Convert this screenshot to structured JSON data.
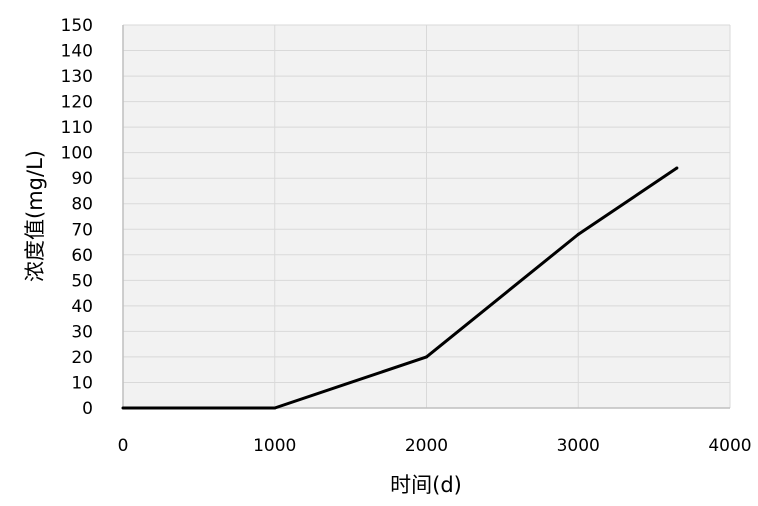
{
  "chart_data": {
    "type": "line",
    "title": "",
    "xlabel": "时间(d)",
    "ylabel": "浓度值(mg/L)",
    "xlim": [
      0,
      4000
    ],
    "ylim": [
      0,
      150
    ],
    "xticks": [
      0,
      1000,
      2000,
      3000,
      4000
    ],
    "yticks": [
      0,
      10,
      20,
      30,
      40,
      50,
      60,
      70,
      80,
      90,
      100,
      110,
      120,
      130,
      140,
      150
    ],
    "grid": true,
    "legend": "none",
    "series": [
      {
        "color": "#000000",
        "x": [
          0,
          1000,
          2000,
          3000,
          3650
        ],
        "y": [
          0,
          0,
          20,
          68,
          94
        ]
      }
    ]
  },
  "colors": {
    "plot_background": "#f2f2f2",
    "grid": "#d9d9d9",
    "axis": "#bfbfbf",
    "text": "#000000"
  }
}
